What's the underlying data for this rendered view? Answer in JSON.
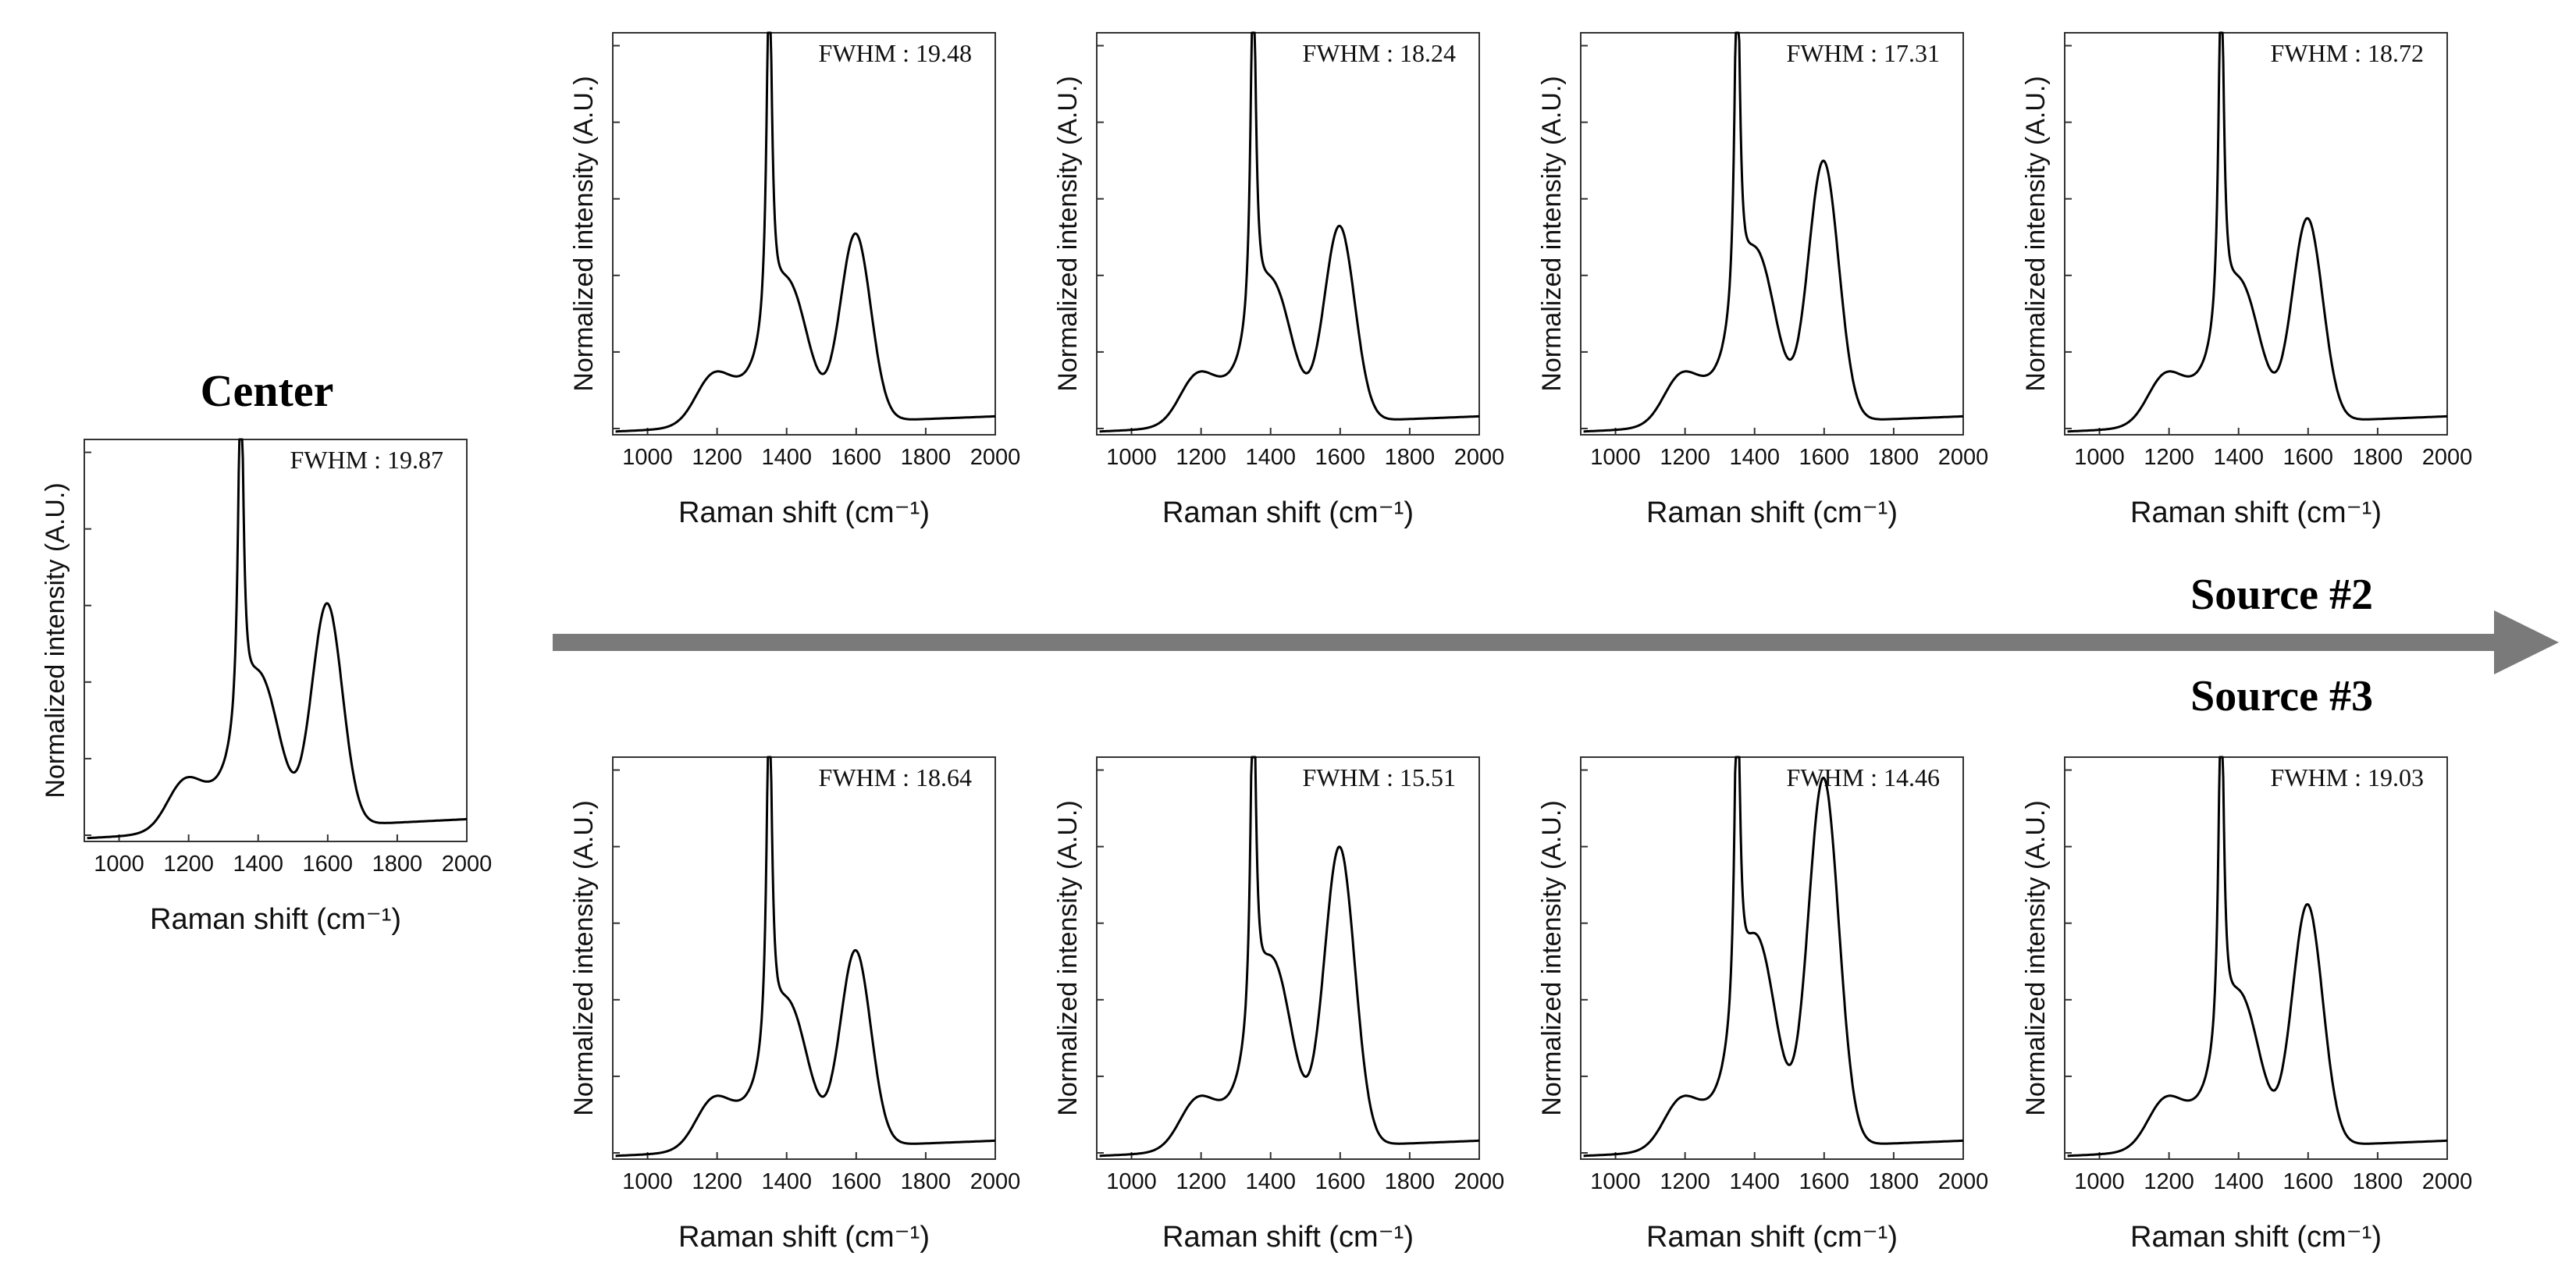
{
  "figure": {
    "center_heading": "Center",
    "source2_label": "Source #2",
    "source3_label": "Source #3",
    "arrow_color": "#7a7a7a",
    "line_color": "#000000"
  },
  "chart_data": [
    {
      "id": "center",
      "type": "line",
      "title": "Center",
      "fwhm_label": "FWHM : 19.87",
      "xlabel": "Raman shift (cm⁻¹)",
      "ylabel": "Normalized intensity (A.U.)",
      "xlim": [
        900,
        2000
      ],
      "ylim": [
        0,
        1.05
      ],
      "xticks": [
        "1000",
        "1200",
        "1400",
        "1600",
        "1800",
        "2000"
      ],
      "peaks": {
        "d": 1.0,
        "g": 0.62,
        "sh": 0.35,
        "bl": 0.05
      }
    },
    {
      "id": "source2-1",
      "type": "line",
      "fwhm_label": "FWHM : 19.48",
      "xlabel": "Raman shift (cm⁻¹)",
      "ylabel": "Normalized intensity (A.U.)",
      "xlim": [
        900,
        2000
      ],
      "ylim": [
        0,
        1.05
      ],
      "xticks": [
        "1000",
        "1200",
        "1400",
        "1600",
        "1800",
        "2000"
      ],
      "peaks": {
        "d": 1.0,
        "g": 0.53,
        "sh": 0.32,
        "bl": 0.04
      }
    },
    {
      "id": "source2-2",
      "type": "line",
      "fwhm_label": "FWHM : 18.24",
      "xlabel": "Raman shift (cm⁻¹)",
      "ylabel": "Normalized intensity (A.U.)",
      "xlim": [
        900,
        2000
      ],
      "ylim": [
        0,
        1.05
      ],
      "xticks": [
        "1000",
        "1200",
        "1400",
        "1600",
        "1800",
        "2000"
      ],
      "peaks": {
        "d": 1.0,
        "g": 0.55,
        "sh": 0.32,
        "bl": 0.04
      }
    },
    {
      "id": "source2-3",
      "type": "line",
      "fwhm_label": "FWHM : 17.31",
      "xlabel": "Raman shift (cm⁻¹)",
      "ylabel": "Normalized intensity (A.U.)",
      "xlim": [
        900,
        2000
      ],
      "ylim": [
        0,
        1.05
      ],
      "xticks": [
        "1000",
        "1200",
        "1400",
        "1600",
        "1800",
        "2000"
      ],
      "peaks": {
        "d": 1.0,
        "g": 0.72,
        "sh": 0.4,
        "bl": 0.04
      }
    },
    {
      "id": "source2-4",
      "type": "line",
      "fwhm_label": "FWHM : 18.72",
      "xlabel": "Raman shift (cm⁻¹)",
      "ylabel": "Normalized intensity (A.U.)",
      "xlim": [
        900,
        2000
      ],
      "ylim": [
        0,
        1.05
      ],
      "xticks": [
        "1000",
        "1200",
        "1400",
        "1600",
        "1800",
        "2000"
      ],
      "peaks": {
        "d": 1.0,
        "g": 0.57,
        "sh": 0.32,
        "bl": 0.04
      }
    },
    {
      "id": "source3-1",
      "type": "line",
      "fwhm_label": "FWHM : 18.64",
      "xlabel": "Raman shift (cm⁻¹)",
      "ylabel": "Normalized intensity (A.U.)",
      "xlim": [
        900,
        2000
      ],
      "ylim": [
        0,
        1.05
      ],
      "xticks": [
        "1000",
        "1200",
        "1400",
        "1600",
        "1800",
        "2000"
      ],
      "peaks": {
        "d": 1.0,
        "g": 0.55,
        "sh": 0.33,
        "bl": 0.04
      }
    },
    {
      "id": "source3-2",
      "type": "line",
      "fwhm_label": "FWHM : 15.51",
      "xlabel": "Raman shift (cm⁻¹)",
      "ylabel": "Normalized intensity (A.U.)",
      "xlim": [
        900,
        2000
      ],
      "ylim": [
        0,
        1.05
      ],
      "xticks": [
        "1000",
        "1200",
        "1400",
        "1600",
        "1800",
        "2000"
      ],
      "peaks": {
        "d": 1.0,
        "g": 0.82,
        "sh": 0.44,
        "bl": 0.04
      }
    },
    {
      "id": "source3-3",
      "type": "line",
      "fwhm_label": "FWHM : 14.46",
      "xlabel": "Raman shift (cm⁻¹)",
      "ylabel": "Normalized intensity (A.U.)",
      "xlim": [
        900,
        2000
      ],
      "ylim": [
        0,
        1.05
      ],
      "xticks": [
        "1000",
        "1200",
        "1400",
        "1600",
        "1800",
        "2000"
      ],
      "peaks": {
        "d": 0.97,
        "g": 1.0,
        "sh": 0.5,
        "bl": 0.04
      }
    },
    {
      "id": "source3-4",
      "type": "line",
      "fwhm_label": "FWHM : 19.03",
      "xlabel": "Raman shift (cm⁻¹)",
      "ylabel": "Normalized intensity (A.U.)",
      "xlim": [
        900,
        2000
      ],
      "ylim": [
        0,
        1.05
      ],
      "xticks": [
        "1000",
        "1200",
        "1400",
        "1600",
        "1800",
        "2000"
      ],
      "peaks": {
        "d": 1.0,
        "g": 0.67,
        "sh": 0.35,
        "bl": 0.04
      }
    }
  ]
}
